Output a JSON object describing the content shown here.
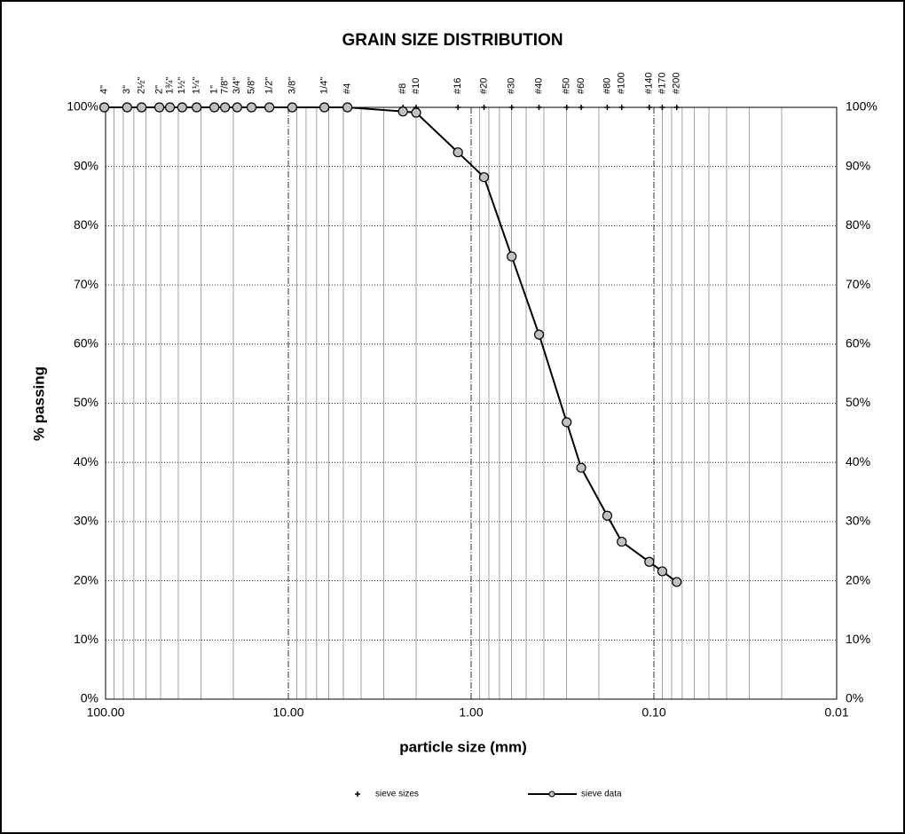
{
  "chart_data": {
    "type": "line",
    "title": "GRAIN SIZE DISTRIBUTION",
    "xlabel": "particle size (mm)",
    "ylabel": "% passing",
    "x_scale": "log",
    "x_reversed": true,
    "grid": true,
    "sieve_labels": [
      "4\"",
      "3\"",
      "2½\"",
      "2\"",
      "1¾\"",
      "1½\"",
      "1¼\"",
      "1\"",
      "7/8\"",
      "3/4\"",
      "5/8\"",
      "1/2\"",
      "3/8\"",
      "1/4\"",
      "#4",
      "#8",
      "#10",
      "#16",
      "#20",
      "#30",
      "#40",
      "#50",
      "#60",
      "#80",
      "#100",
      "#140",
      "#170",
      "#200"
    ],
    "x": [
      101.6,
      76.2,
      63.5,
      50.8,
      44.45,
      38.1,
      31.75,
      25.4,
      22.2,
      19.05,
      15.9,
      12.7,
      9.525,
      6.35,
      4.75,
      2.36,
      2.0,
      1.18,
      0.85,
      0.6,
      0.425,
      0.3,
      0.25,
      0.18,
      0.15,
      0.106,
      0.09,
      0.075
    ],
    "series": [
      {
        "name": "sieve sizes",
        "color": "#000000",
        "marker": "plus",
        "values": [
          100,
          100,
          100,
          100,
          100,
          100,
          100,
          100,
          100,
          100,
          100,
          100,
          100,
          100,
          100,
          100,
          100,
          100,
          100,
          100,
          100,
          100,
          100,
          100,
          100,
          100,
          100,
          100
        ]
      },
      {
        "name": "sieve data",
        "color": "#000000",
        "marker_color": "#c0c0c0",
        "values": [
          100,
          100,
          100,
          100,
          100,
          100,
          100,
          100,
          100,
          100,
          100,
          100,
          100,
          100,
          100,
          99.3,
          99.1,
          92.4,
          88.2,
          74.8,
          61.6,
          46.8,
          39.1,
          31.0,
          26.6,
          23.2,
          21.6,
          19.8
        ]
      }
    ],
    "xlim": [
      100,
      0.01
    ],
    "xticks": [
      {
        "value": 100,
        "label": "100.00"
      },
      {
        "value": 10,
        "label": "10.00"
      },
      {
        "value": 1,
        "label": "1.00"
      },
      {
        "value": 0.1,
        "label": "0.10"
      },
      {
        "value": 0.01,
        "label": "0.01"
      }
    ],
    "ylim": [
      0,
      100
    ],
    "yticks": [
      {
        "value": 0,
        "label": "0%"
      },
      {
        "value": 10,
        "label": "10%"
      },
      {
        "value": 20,
        "label": "20%"
      },
      {
        "value": 30,
        "label": "30%"
      },
      {
        "value": 40,
        "label": "40%"
      },
      {
        "value": 50,
        "label": "50%"
      },
      {
        "value": 60,
        "label": "60%"
      },
      {
        "value": 70,
        "label": "70%"
      },
      {
        "value": 80,
        "label": "80%"
      },
      {
        "value": 90,
        "label": "90%"
      },
      {
        "value": 100,
        "label": "100%"
      }
    ]
  }
}
